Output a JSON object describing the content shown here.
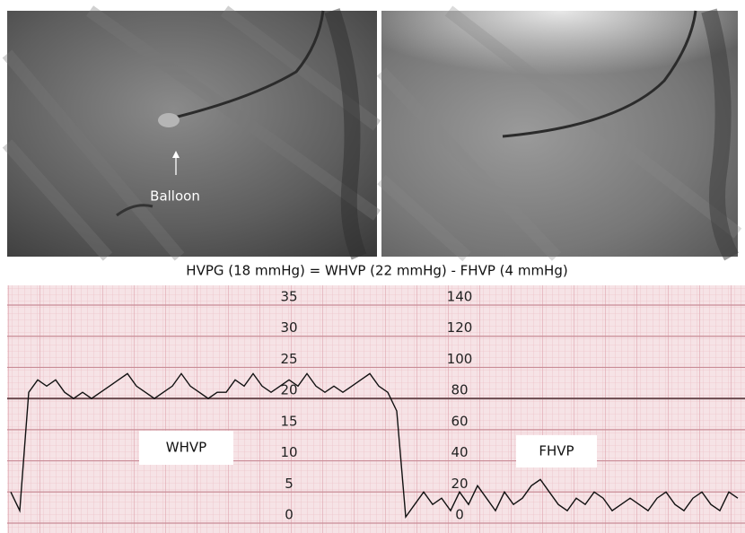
{
  "figure": {
    "balloon_label": "Balloon"
  },
  "chart_data": {
    "type": "line",
    "title": "HVPG (18 mmHg) = WHVP (22 mmHg) - FHVP (4 mmHg)",
    "annotations": [
      "WHVP",
      "FHVP"
    ],
    "color": "#111111",
    "values": [
      5,
      2,
      21,
      23,
      22,
      23,
      21,
      20,
      21,
      20,
      21,
      22,
      23,
      24,
      22,
      21,
      20,
      21,
      22,
      24,
      22,
      21,
      20,
      21,
      21,
      23,
      22,
      24,
      22,
      21,
      22,
      23,
      22,
      24,
      22,
      21,
      22,
      21,
      22,
      23,
      24,
      22,
      21,
      18,
      1,
      3,
      5,
      3,
      4,
      2,
      5,
      3,
      6,
      4,
      2,
      5,
      3,
      4,
      6,
      7,
      5,
      3,
      2,
      4,
      3,
      5,
      4,
      2,
      3,
      4,
      3,
      2,
      4,
      5,
      3,
      2,
      4,
      5,
      3,
      2,
      5,
      4
    ],
    "ylim": [
      0,
      35
    ],
    "yticks": [
      0,
      5,
      10,
      15,
      20,
      25,
      30,
      35
    ],
    "y2lim": [
      0,
      140
    ],
    "y2ticks": [
      0,
      20,
      40,
      60,
      80,
      100,
      120,
      140
    ],
    "grid": true
  }
}
